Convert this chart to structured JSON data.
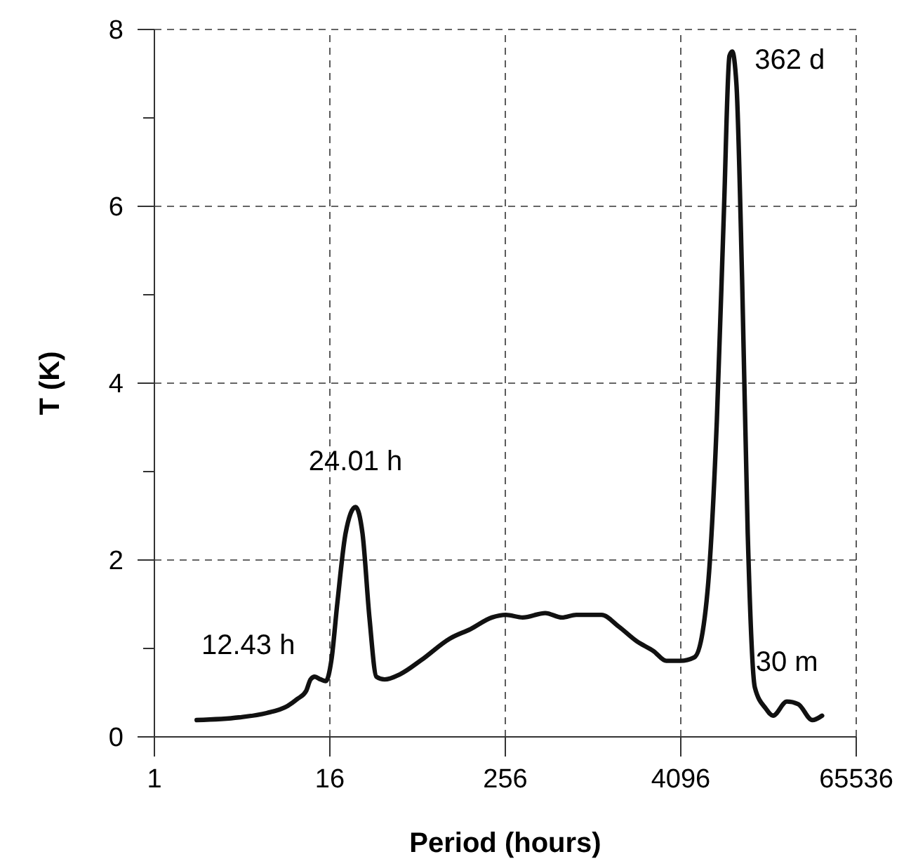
{
  "chart_data": {
    "type": "line",
    "xlabel": "Period (hours)",
    "ylabel": "T (K)",
    "log": "x",
    "xlim": [
      1,
      65536
    ],
    "xticks": [
      1,
      16,
      256,
      4096,
      65536
    ],
    "ylim": [
      0,
      8
    ],
    "yticks": [
      0,
      {
        "value": 1,
        "label": null
      },
      2,
      {
        "value": 3,
        "label": null
      },
      4,
      {
        "value": 5,
        "label": null
      },
      6,
      {
        "value": 7,
        "label": null
      },
      8
    ],
    "grid": true,
    "line_style": "solid",
    "marker": "none",
    "series": [
      {
        "color": "#111111",
        "x": [
          1.95,
          3.8,
          5.9,
          8.2,
          9.6,
          11,
          11.8,
          12.6,
          13.8,
          15,
          16.4,
          18,
          20.5,
          24,
          26.8,
          29.9,
          33.4,
          38,
          48.7,
          68,
          106,
          148,
          207,
          258,
          337,
          481,
          627,
          785,
          1170,
          1530,
          2048,
          2665,
          3260,
          4070,
          5080,
          5790,
          6480,
          7240,
          8100,
          8840,
          9230,
          9870,
          10800,
          11800,
          13200,
          15700,
          17600,
          21900,
          26200,
          32768,
          38200
        ],
        "values": [
          0.19,
          0.22,
          0.27,
          0.35,
          0.43,
          0.52,
          0.65,
          0.68,
          0.65,
          0.63,
          0.87,
          1.51,
          2.3,
          2.6,
          2.3,
          1.35,
          0.68,
          0.65,
          0.71,
          0.87,
          1.11,
          1.22,
          1.35,
          1.38,
          1.35,
          1.4,
          1.35,
          1.38,
          1.38,
          1.25,
          1.08,
          0.97,
          0.86,
          0.86,
          0.9,
          1.19,
          1.98,
          3.57,
          5.95,
          7.7,
          7.75,
          7.38,
          5.16,
          2.3,
          0.56,
          0.32,
          0.24,
          0.4,
          0.37,
          0.19,
          0.24
        ]
      }
    ],
    "annotations": [
      {
        "text": "12.43 h",
        "x": 12.6,
        "y": 0.68
      },
      {
        "text": "24.01 h",
        "x": 24,
        "y": 2.6
      },
      {
        "text": "362 d",
        "x": 9230,
        "y": 7.75
      },
      {
        "text": "30 m",
        "x": 21900,
        "y": 0.4
      }
    ]
  }
}
